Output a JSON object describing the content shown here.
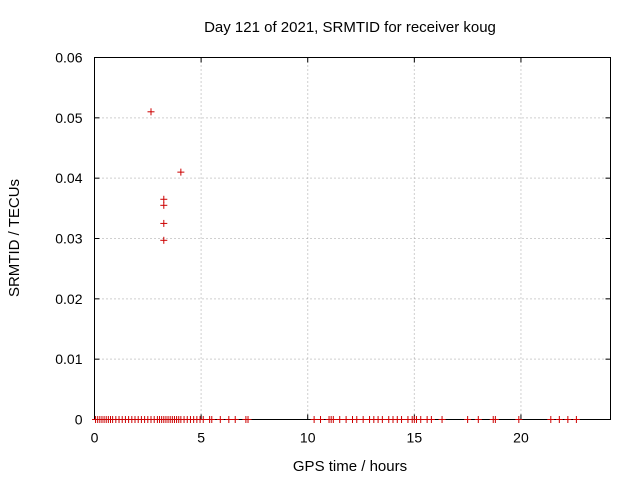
{
  "chart_data": {
    "type": "scatter",
    "title": "Day 121 of 2021, SRMTID for receiver koug",
    "xlabel": "GPS time / hours",
    "ylabel": "SRMTID / TECUs",
    "xlim": [
      0,
      24.2
    ],
    "ylim": [
      0,
      0.06
    ],
    "x_ticks": [
      0,
      5,
      10,
      15,
      20
    ],
    "x_tick_labels": [
      "0",
      "5",
      "10",
      "15",
      "20"
    ],
    "y_ticks": [
      0,
      0.01,
      0.02,
      0.03,
      0.04,
      0.05,
      0.06
    ],
    "y_tick_labels": [
      "0",
      "0.01",
      "0.02",
      "0.03",
      "0.04",
      "0.05",
      "0.06"
    ],
    "grid": true,
    "marker": "+",
    "series": [
      {
        "name": "SRMTID",
        "color": "#cc0000",
        "points": [
          {
            "x": 2.65,
            "y": 0.051
          },
          {
            "x": 4.05,
            "y": 0.041
          },
          {
            "x": 3.25,
            "y": 0.0365
          },
          {
            "x": 3.25,
            "y": 0.0355
          },
          {
            "x": 3.25,
            "y": 0.0325
          },
          {
            "x": 3.25,
            "y": 0.0297
          },
          {
            "x": 0.05,
            "y": 0
          },
          {
            "x": 0.15,
            "y": 0
          },
          {
            "x": 0.25,
            "y": 0
          },
          {
            "x": 0.35,
            "y": 0
          },
          {
            "x": 0.45,
            "y": 0
          },
          {
            "x": 0.55,
            "y": 0
          },
          {
            "x": 0.65,
            "y": 0
          },
          {
            "x": 0.75,
            "y": 0
          },
          {
            "x": 0.85,
            "y": 0
          },
          {
            "x": 1.0,
            "y": 0
          },
          {
            "x": 1.15,
            "y": 0
          },
          {
            "x": 1.3,
            "y": 0
          },
          {
            "x": 1.45,
            "y": 0
          },
          {
            "x": 1.6,
            "y": 0
          },
          {
            "x": 1.75,
            "y": 0
          },
          {
            "x": 1.9,
            "y": 0
          },
          {
            "x": 2.05,
            "y": 0
          },
          {
            "x": 2.2,
            "y": 0
          },
          {
            "x": 2.35,
            "y": 0
          },
          {
            "x": 2.5,
            "y": 0
          },
          {
            "x": 2.65,
            "y": 0
          },
          {
            "x": 2.8,
            "y": 0
          },
          {
            "x": 2.95,
            "y": 0
          },
          {
            "x": 3.05,
            "y": 0
          },
          {
            "x": 3.15,
            "y": 0
          },
          {
            "x": 3.25,
            "y": 0
          },
          {
            "x": 3.35,
            "y": 0
          },
          {
            "x": 3.45,
            "y": 0
          },
          {
            "x": 3.55,
            "y": 0
          },
          {
            "x": 3.65,
            "y": 0
          },
          {
            "x": 3.75,
            "y": 0
          },
          {
            "x": 3.85,
            "y": 0
          },
          {
            "x": 3.95,
            "y": 0
          },
          {
            "x": 4.05,
            "y": 0
          },
          {
            "x": 4.2,
            "y": 0
          },
          {
            "x": 4.35,
            "y": 0
          },
          {
            "x": 4.5,
            "y": 0
          },
          {
            "x": 4.65,
            "y": 0
          },
          {
            "x": 4.8,
            "y": 0
          },
          {
            "x": 4.95,
            "y": 0
          },
          {
            "x": 5.1,
            "y": 0
          },
          {
            "x": 5.4,
            "y": 0
          },
          {
            "x": 5.5,
            "y": 0
          },
          {
            "x": 5.9,
            "y": 0
          },
          {
            "x": 6.3,
            "y": 0
          },
          {
            "x": 6.6,
            "y": 0
          },
          {
            "x": 7.1,
            "y": 0
          },
          {
            "x": 7.2,
            "y": 0
          },
          {
            "x": 10.3,
            "y": 0
          },
          {
            "x": 10.6,
            "y": 0
          },
          {
            "x": 11.0,
            "y": 0
          },
          {
            "x": 11.1,
            "y": 0
          },
          {
            "x": 11.2,
            "y": 0
          },
          {
            "x": 11.5,
            "y": 0
          },
          {
            "x": 11.8,
            "y": 0
          },
          {
            "x": 12.1,
            "y": 0
          },
          {
            "x": 12.3,
            "y": 0
          },
          {
            "x": 12.6,
            "y": 0
          },
          {
            "x": 12.9,
            "y": 0
          },
          {
            "x": 13.1,
            "y": 0
          },
          {
            "x": 13.3,
            "y": 0
          },
          {
            "x": 13.5,
            "y": 0
          },
          {
            "x": 13.8,
            "y": 0
          },
          {
            "x": 14.0,
            "y": 0
          },
          {
            "x": 14.2,
            "y": 0
          },
          {
            "x": 14.4,
            "y": 0
          },
          {
            "x": 14.7,
            "y": 0
          },
          {
            "x": 14.9,
            "y": 0
          },
          {
            "x": 15.0,
            "y": 0
          },
          {
            "x": 15.1,
            "y": 0
          },
          {
            "x": 15.3,
            "y": 0
          },
          {
            "x": 15.6,
            "y": 0
          },
          {
            "x": 15.8,
            "y": 0
          },
          {
            "x": 16.3,
            "y": 0
          },
          {
            "x": 17.5,
            "y": 0
          },
          {
            "x": 18.0,
            "y": 0
          },
          {
            "x": 18.7,
            "y": 0
          },
          {
            "x": 18.8,
            "y": 0
          },
          {
            "x": 19.9,
            "y": 0
          },
          {
            "x": 21.4,
            "y": 0
          },
          {
            "x": 21.8,
            "y": 0
          },
          {
            "x": 22.2,
            "y": 0
          },
          {
            "x": 22.6,
            "y": 0
          }
        ]
      }
    ]
  }
}
